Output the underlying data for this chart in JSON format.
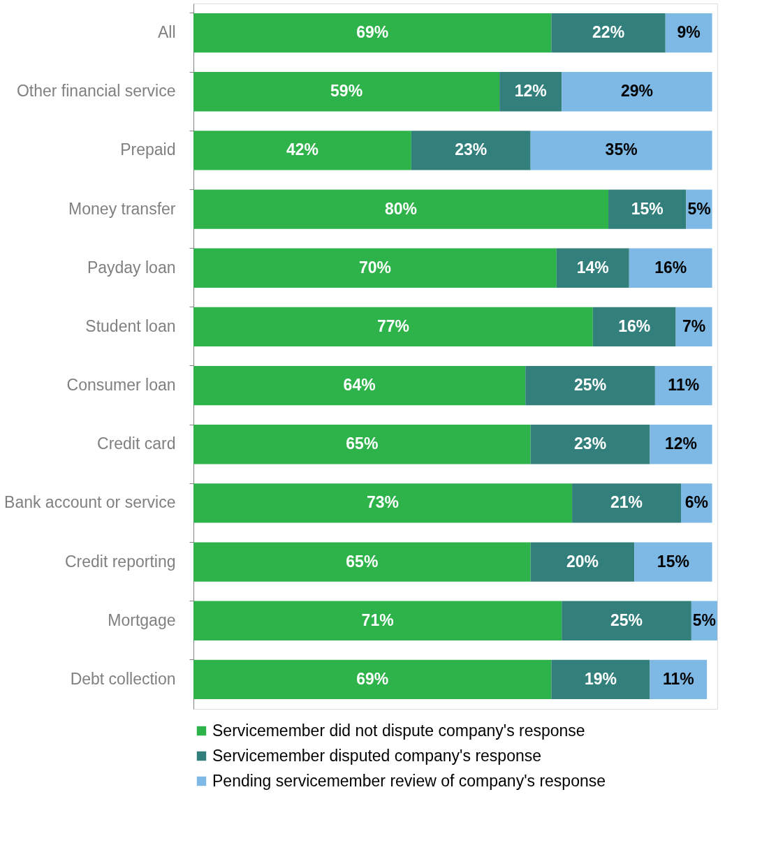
{
  "chart_data": {
    "type": "bar",
    "orientation": "horizontal",
    "stacked": true,
    "legend": "bottom",
    "grid": false,
    "tick_labels": "y",
    "xlim": [
      0,
      101
    ],
    "categories": [
      "All",
      "Other financial service",
      "Prepaid",
      "Money transfer",
      "Payday loan",
      "Student loan",
      "Consumer loan",
      "Credit card",
      "Bank account or service",
      "Credit reporting",
      "Mortgage",
      "Debt collection"
    ],
    "series": [
      {
        "name": "Servicemember did not dispute company's response",
        "color": "#2db34a",
        "values": [
          69,
          59,
          42,
          80,
          70,
          77,
          64,
          65,
          73,
          65,
          71,
          69
        ],
        "value_labels": [
          "69%",
          "59%",
          "42%",
          "80%",
          "70%",
          "77%",
          "64%",
          "65%",
          "73%",
          "65%",
          "71%",
          "69%"
        ]
      },
      {
        "name": "Servicemember disputed company's response",
        "color": "#327f7c",
        "values": [
          22,
          12,
          23,
          15,
          14,
          16,
          25,
          23,
          21,
          20,
          25,
          19
        ],
        "value_labels": [
          "22%",
          "12%",
          "23%",
          "15%",
          "14%",
          "16%",
          "25%",
          "23%",
          "21%",
          "20%",
          "25%",
          "19%"
        ]
      },
      {
        "name": "Pending servicemember review of company's response",
        "color": "#7eb9e6",
        "values": [
          9,
          29,
          35,
          5,
          16,
          7,
          11,
          12,
          6,
          15,
          5,
          11
        ],
        "value_labels": [
          "9%",
          "29%",
          "35%",
          "5%",
          "16%",
          "7%",
          "11%",
          "12%",
          "6%",
          "15%",
          "5%",
          "11%"
        ]
      }
    ]
  }
}
